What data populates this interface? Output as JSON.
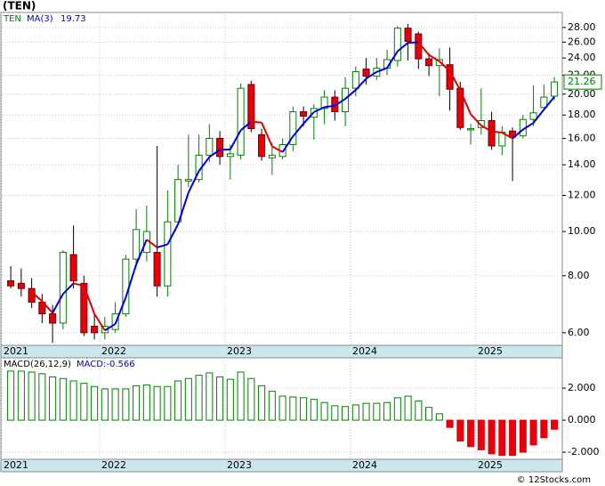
{
  "chart_data": [
    {
      "type": "candlestick",
      "title": "(TEN)",
      "name": "TEN",
      "log": true,
      "grid": true,
      "up_color": "#008000",
      "down_color": "#e8000b",
      "name_color": "#008000",
      "xlim": [
        -0.86,
        52.76
      ],
      "xticks": [
        {
          "value": -0.86,
          "label": "2021"
        },
        {
          "value": 8.5,
          "label": "2022"
        },
        {
          "value": 20.5,
          "label": "2023"
        },
        {
          "value": 32.5,
          "label": "2024"
        },
        {
          "value": 44.5,
          "label": "2025"
        }
      ],
      "ylim": [
        5.63,
        30.2
      ],
      "yticks": [
        {
          "value": 6,
          "label": "6.00"
        },
        {
          "value": 8,
          "label": "8.00"
        },
        {
          "value": 10,
          "label": "10.00"
        },
        {
          "value": 12,
          "label": "12.00"
        },
        {
          "value": 14,
          "label": "14.00"
        },
        {
          "value": 16,
          "label": "16.00"
        },
        {
          "value": 18,
          "label": "18.00"
        },
        {
          "value": 20,
          "label": "20.00"
        },
        {
          "value": 22,
          "label": "22.00"
        },
        {
          "value": 24,
          "label": "24.00"
        },
        {
          "value": 26,
          "label": "26.00"
        },
        {
          "value": 28,
          "label": "28.00"
        }
      ],
      "open": [
        7.8,
        7.7,
        7.5,
        7.0,
        6.6,
        6.3,
        8.9,
        7.7,
        6.2,
        6.0,
        6.1,
        6.6,
        8.7,
        9.0,
        9.0,
        7.6,
        10.5,
        12.9,
        13.0,
        14.7,
        16.0,
        14.6,
        14.7,
        21.0,
        16.3,
        14.5,
        14.6,
        15.5,
        18.3,
        17.8,
        18.6,
        19.7,
        18.3,
        20.6,
        22.7,
        21.9,
        22.8,
        23.7,
        27.9,
        27.1,
        23.9,
        23.1,
        23.2,
        20.6,
        16.7,
        16.9,
        17.5,
        15.4,
        16.6,
        16.2,
        17.6,
        18.7,
        19.8
      ],
      "high": [
        8.4,
        8.3,
        7.9,
        7.3,
        6.9,
        9.1,
        10.3,
        8.0,
        6.6,
        6.5,
        7.0,
        8.9,
        11.2,
        11.4,
        15.4,
        12.3,
        14.0,
        16.3,
        16.3,
        17.2,
        16.6,
        15.5,
        21.1,
        21.4,
        16.8,
        15.6,
        16.0,
        18.8,
        18.8,
        19.0,
        20.4,
        20.4,
        21.8,
        23.0,
        24.0,
        24.0,
        25.0,
        28.2,
        28.5,
        27.4,
        24.6,
        25.2,
        25.3,
        21.3,
        17.2,
        20.6,
        18.3,
        17.0,
        16.9,
        18.0,
        20.9,
        21.0,
        21.8
      ],
      "low": [
        7.5,
        7.2,
        6.8,
        6.3,
        5.7,
        6.1,
        7.5,
        5.9,
        5.8,
        5.8,
        6.0,
        6.5,
        8.4,
        8.6,
        7.2,
        7.2,
        10.3,
        12.5,
        12.8,
        14.2,
        14.0,
        13.0,
        14.4,
        16.5,
        14.3,
        13.3,
        14.4,
        15.0,
        17.0,
        15.9,
        17.2,
        17.5,
        17.0,
        19.8,
        21.0,
        21.5,
        22.0,
        23.0,
        23.7,
        22.7,
        21.9,
        19.8,
        18.4,
        16.7,
        15.5,
        16.3,
        15.1,
        14.7,
        12.9,
        16.0,
        17.0,
        18.5,
        19.4
      ],
      "close": [
        7.6,
        7.5,
        7.0,
        6.6,
        6.3,
        9.0,
        7.8,
        6.0,
        6.0,
        6.2,
        6.6,
        8.7,
        10.1,
        10.0,
        7.6,
        10.5,
        13.0,
        13.0,
        14.7,
        16.0,
        14.6,
        14.8,
        20.6,
        16.8,
        14.6,
        14.7,
        15.5,
        18.3,
        17.9,
        18.6,
        19.7,
        18.3,
        20.6,
        22.4,
        21.9,
        22.8,
        23.8,
        27.9,
        26.1,
        23.9,
        23.1,
        23.8,
        20.5,
        16.9,
        16.8,
        17.5,
        15.4,
        16.5,
        16.1,
        17.6,
        18.2,
        19.7,
        21.26
      ],
      "ma": {
        "name": "MA(3)",
        "up_color": "#0000dd",
        "down_color": "#e00000",
        "values": [
          null,
          null,
          7.37,
          7.03,
          6.63,
          7.3,
          7.7,
          7.6,
          6.6,
          6.07,
          6.27,
          7.17,
          8.47,
          9.6,
          9.23,
          9.37,
          10.37,
          12.17,
          13.57,
          14.57,
          15.1,
          15.13,
          16.67,
          17.4,
          17.33,
          15.37,
          14.93,
          16.17,
          17.23,
          18.27,
          18.73,
          18.87,
          19.53,
          20.43,
          21.63,
          22.37,
          22.83,
          24.83,
          25.93,
          25.97,
          24.37,
          23.6,
          22.47,
          20.4,
          18.07,
          17.07,
          16.57,
          16.47,
          16.0,
          16.73,
          17.3,
          18.5,
          19.73
        ]
      }
    },
    {
      "type": "bar",
      "name": "MACD(26,12,9)",
      "value_caption": "MACD:",
      "caption_color": "#0000cc",
      "up_color": "#008000",
      "down_color": "#e8000b",
      "grid": true,
      "ylim": [
        -2.44,
        3.89
      ],
      "yticks": [
        {
          "value": 2,
          "label": "2.000"
        },
        {
          "value": 0,
          "label": "0.000"
        },
        {
          "value": -2,
          "label": "-2.000"
        }
      ],
      "values": [
        3.06,
        3.06,
        3.0,
        2.9,
        2.7,
        2.6,
        2.45,
        2.3,
        2.1,
        1.95,
        1.95,
        1.95,
        2.15,
        2.2,
        2.1,
        2.1,
        2.45,
        2.6,
        2.8,
        2.95,
        2.7,
        2.55,
        3.0,
        2.6,
        2.15,
        1.8,
        1.5,
        1.45,
        1.4,
        1.3,
        1.1,
        0.9,
        0.85,
        0.95,
        1.05,
        1.05,
        1.1,
        1.4,
        1.5,
        1.2,
        0.8,
        0.4,
        -0.45,
        -1.3,
        -1.65,
        -1.85,
        -2.1,
        -2.2,
        -2.2,
        -2.0,
        -1.55,
        -1.1,
        -0.566
      ]
    }
  ],
  "footer": "© 12Stocks.com"
}
